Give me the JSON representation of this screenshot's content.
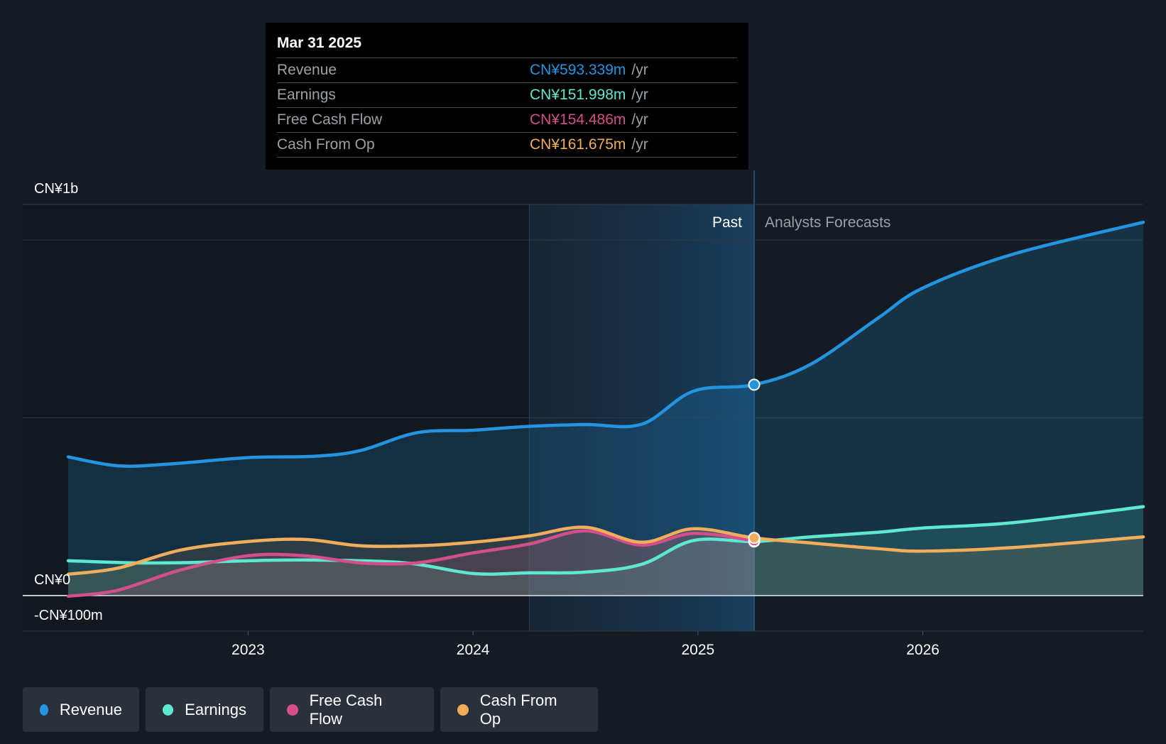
{
  "tooltip": {
    "date": "Mar 31 2025",
    "rows": [
      {
        "label": "Revenue",
        "value": "CN¥593.339m",
        "unit": "/yr",
        "color": "#2394df"
      },
      {
        "label": "Earnings",
        "value": "CN¥151.998m",
        "unit": "/yr",
        "color": "#5ee8d0"
      },
      {
        "label": "Free Cash Flow",
        "value": "CN¥154.486m",
        "unit": "/yr",
        "color": "#d24f8a"
      },
      {
        "label": "Cash From Op",
        "value": "CN¥161.675m",
        "unit": "/yr",
        "color": "#f0ad5c"
      }
    ]
  },
  "labels": {
    "past": "Past",
    "forecast": "Analysts Forecasts"
  },
  "legend": [
    {
      "label": "Revenue",
      "color": "#2394df"
    },
    {
      "label": "Earnings",
      "color": "#5ee8d0"
    },
    {
      "label": "Free Cash Flow",
      "color": "#d24f8a"
    },
    {
      "label": "Cash From Op",
      "color": "#f0ad5c"
    }
  ],
  "chart_data": {
    "type": "line",
    "title": "",
    "xlabel": "",
    "ylabel": "",
    "unit": "CN¥ m",
    "ylim": [
      -100,
      1100
    ],
    "y_ticks": [
      {
        "value": 1100,
        "label": "CN¥1b"
      },
      {
        "value": 0,
        "label": "CN¥0"
      },
      {
        "value": -100,
        "label": "-CN¥100m"
      }
    ],
    "xlim": [
      2022.2,
      2026.98
    ],
    "x_ticks": [
      {
        "value": 2023,
        "label": "2023"
      },
      {
        "value": 2024,
        "label": "2024"
      },
      {
        "value": 2025,
        "label": "2025"
      },
      {
        "value": 2026,
        "label": "2026"
      }
    ],
    "highlight_range": [
      2024.25,
      2025.25
    ],
    "divider_x": 2025.25,
    "series": [
      {
        "name": "Revenue",
        "color": "#2394df",
        "fill": true,
        "points": [
          [
            2022.2,
            390
          ],
          [
            2022.42,
            365
          ],
          [
            2022.65,
            370
          ],
          [
            2023.0,
            388
          ],
          [
            2023.3,
            392
          ],
          [
            2023.5,
            408
          ],
          [
            2023.75,
            458
          ],
          [
            2024.0,
            465
          ],
          [
            2024.25,
            476
          ],
          [
            2024.5,
            481
          ],
          [
            2024.75,
            482
          ],
          [
            2024.98,
            575
          ],
          [
            2025.25,
            593
          ],
          [
            2025.5,
            650
          ],
          [
            2025.8,
            780
          ],
          [
            2026.0,
            865
          ],
          [
            2026.4,
            960
          ],
          [
            2026.98,
            1050
          ]
        ]
      },
      {
        "name": "Earnings",
        "color": "#5ee8d0",
        "fill": true,
        "points": [
          [
            2022.2,
            98
          ],
          [
            2022.5,
            92
          ],
          [
            2022.75,
            93
          ],
          [
            2023.0,
            98
          ],
          [
            2023.3,
            100
          ],
          [
            2023.7,
            92
          ],
          [
            2024.0,
            62
          ],
          [
            2024.25,
            64
          ],
          [
            2024.5,
            66
          ],
          [
            2024.75,
            88
          ],
          [
            2024.98,
            155
          ],
          [
            2025.25,
            152
          ],
          [
            2025.5,
            165
          ],
          [
            2025.8,
            178
          ],
          [
            2026.0,
            190
          ],
          [
            2026.4,
            205
          ],
          [
            2026.98,
            250
          ]
        ]
      },
      {
        "name": "Free Cash Flow",
        "color": "#d24f8a",
        "fill": true,
        "points": [
          [
            2022.2,
            -2
          ],
          [
            2022.42,
            15
          ],
          [
            2022.7,
            72
          ],
          [
            2023.0,
            112
          ],
          [
            2023.25,
            112
          ],
          [
            2023.5,
            92
          ],
          [
            2023.75,
            92
          ],
          [
            2024.0,
            120
          ],
          [
            2024.25,
            145
          ],
          [
            2024.5,
            182
          ],
          [
            2024.75,
            142
          ],
          [
            2024.98,
            175
          ],
          [
            2025.25,
            154
          ]
        ]
      },
      {
        "name": "Cash From Op",
        "color": "#f0ad5c",
        "fill": true,
        "points": [
          [
            2022.2,
            60
          ],
          [
            2022.42,
            77
          ],
          [
            2022.7,
            128
          ],
          [
            2023.0,
            152
          ],
          [
            2023.25,
            158
          ],
          [
            2023.5,
            140
          ],
          [
            2023.75,
            140
          ],
          [
            2024.0,
            150
          ],
          [
            2024.25,
            168
          ],
          [
            2024.5,
            192
          ],
          [
            2024.75,
            150
          ],
          [
            2024.98,
            188
          ],
          [
            2025.25,
            162
          ],
          [
            2025.5,
            148
          ],
          [
            2025.8,
            132
          ],
          [
            2026.0,
            125
          ],
          [
            2026.4,
            135
          ],
          [
            2026.98,
            165
          ]
        ]
      }
    ]
  }
}
